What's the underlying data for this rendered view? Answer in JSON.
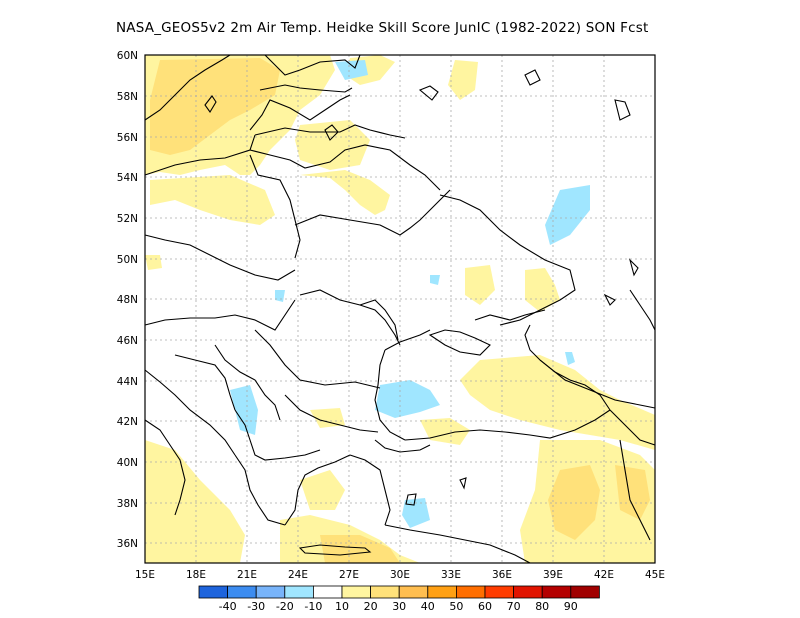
{
  "title": "NASA_GEOS5v2  2m Air Temp. Heidke Skill Score JunIC (1982-2022) SON Fcst",
  "lat_labels": [
    "60N",
    "58N",
    "56N",
    "54N",
    "52N",
    "50N",
    "48N",
    "46N",
    "44N",
    "42N",
    "40N",
    "38N",
    "36N"
  ],
  "lon_labels": [
    "15E",
    "18E",
    "21E",
    "24E",
    "27E",
    "30E",
    "33E",
    "36E",
    "39E",
    "42E",
    "45E"
  ],
  "extent": {
    "lon_min": 15,
    "lon_max": 45,
    "lat_min": 35,
    "lat_max": 60
  },
  "colorbar": {
    "colors": [
      "#1e64dc",
      "#3c8cf0",
      "#78b4fa",
      "#a0e6ff",
      "#ffffff",
      "#fff5a0",
      "#ffe17a",
      "#ffbe50",
      "#ffa014",
      "#ff6e00",
      "#ff3c00",
      "#e11400",
      "#b40000",
      "#a00000"
    ],
    "labels": [
      "-40",
      "-30",
      "-20",
      "-10",
      "10",
      "20",
      "30",
      "40",
      "50",
      "60",
      "70",
      "80",
      "90"
    ]
  },
  "colors": {
    "positive_light": "#fff5a0",
    "positive_mid": "#ffe17a",
    "negative_light": "#a0e6ff",
    "grid": "#999999"
  }
}
